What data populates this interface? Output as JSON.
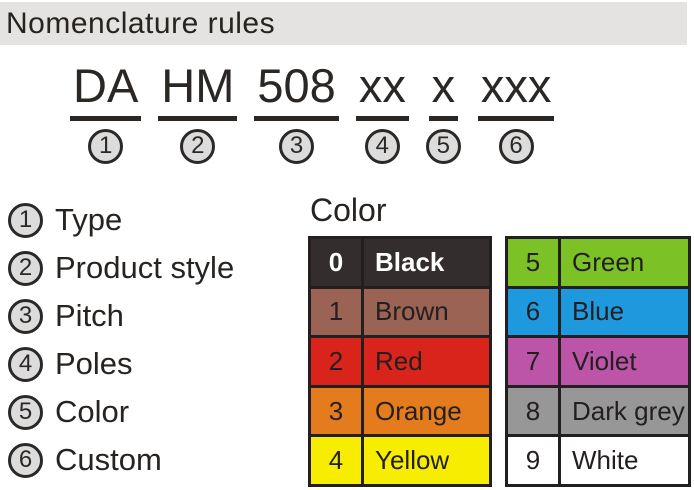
{
  "page": {
    "title": "Nomenclature rules"
  },
  "formula": {
    "segments": [
      {
        "text": "DA",
        "num": "1"
      },
      {
        "text": "HM",
        "num": "2"
      },
      {
        "text": "508",
        "num": "3"
      },
      {
        "text": "xx",
        "num": "4"
      },
      {
        "text": "x",
        "num": "5"
      },
      {
        "text": "xxx",
        "num": "6"
      }
    ]
  },
  "legend": {
    "items": [
      {
        "num": "1",
        "label": "Type"
      },
      {
        "num": "2",
        "label": "Product style"
      },
      {
        "num": "3",
        "label": "Pitch"
      },
      {
        "num": "4",
        "label": "Poles"
      },
      {
        "num": "5",
        "label": "Color"
      },
      {
        "num": "6",
        "label": "Custom"
      }
    ]
  },
  "color_table": {
    "heading": "Color",
    "left_column": [
      {
        "code": "0",
        "name": "Black",
        "bg": "#332e2d",
        "fg": "#ffffff",
        "bold": true
      },
      {
        "code": "1",
        "name": "Brown",
        "bg": "#9a6354",
        "fg": "#231f20"
      },
      {
        "code": "2",
        "name": "Red",
        "bg": "#d9241c",
        "fg": "#231f20"
      },
      {
        "code": "3",
        "name": "Orange",
        "bg": "#e47c1e",
        "fg": "#231f20"
      },
      {
        "code": "4",
        "name": "Yellow",
        "bg": "#f6ed00",
        "fg": "#231f20"
      }
    ],
    "right_column": [
      {
        "code": "5",
        "name": "Green",
        "bg": "#7cc226",
        "fg": "#231f20"
      },
      {
        "code": "6",
        "name": "Blue",
        "bg": "#1e99de",
        "fg": "#231f20"
      },
      {
        "code": "7",
        "name": "Violet",
        "bg": "#bc55a8",
        "fg": "#231f20"
      },
      {
        "code": "8",
        "name": "Dark grey",
        "bg": "#979797",
        "fg": "#231f20"
      },
      {
        "code": "9",
        "name": "White",
        "bg": "#ffffff",
        "fg": "#231f20"
      }
    ]
  },
  "colors": {
    "title_bar_bg": "#e4e3e1",
    "circle_fill": "#dcdcdc",
    "ink": "#2b2826",
    "table_border": "#231f20"
  }
}
